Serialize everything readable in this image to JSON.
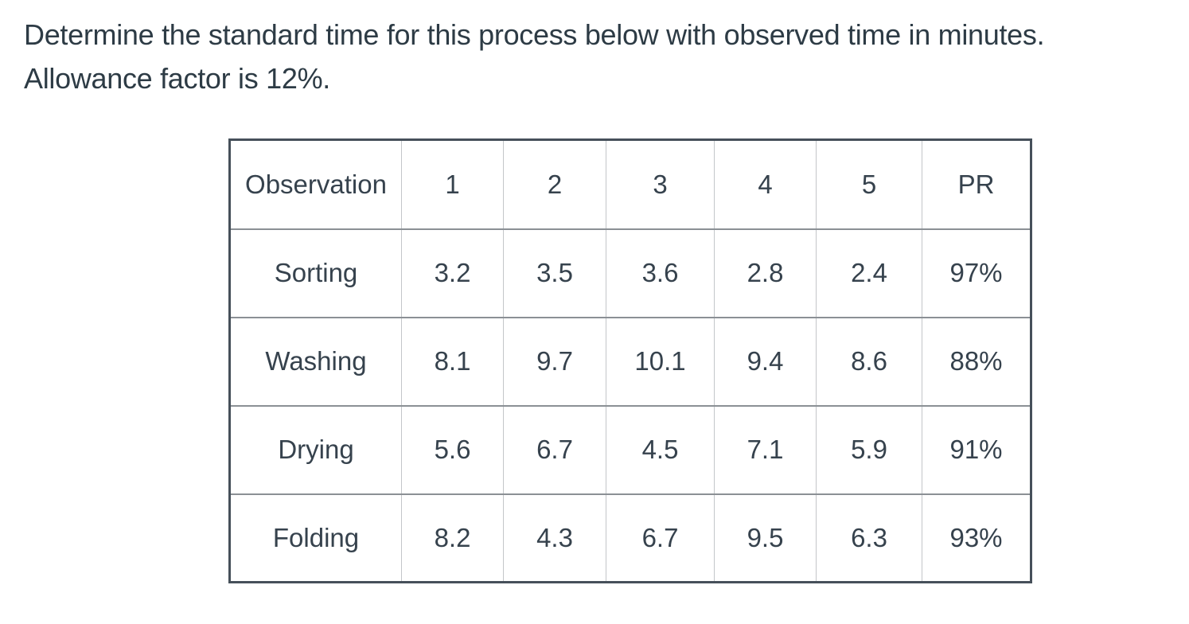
{
  "question": {
    "line1": "Determine the standard time for this process below with observed time in minutes.",
    "line2": "Allowance factor is 12%."
  },
  "table": {
    "header": [
      "Observation",
      "1",
      "2",
      "3",
      "4",
      "5",
      "PR"
    ],
    "rows": [
      {
        "label": "Sorting",
        "values": [
          "3.2",
          "3.5",
          "3.6",
          "2.8",
          "2.4"
        ],
        "pr": "97%"
      },
      {
        "label": "Washing",
        "values": [
          "8.1",
          "9.7",
          "10.1",
          "9.4",
          "8.6"
        ],
        "pr": "88%"
      },
      {
        "label": "Drying",
        "values": [
          "5.6",
          "6.7",
          "4.5",
          "7.1",
          "5.9"
        ],
        "pr": "91%"
      },
      {
        "label": "Folding",
        "values": [
          "8.2",
          "4.3",
          "6.7",
          "9.5",
          "6.3"
        ],
        "pr": "93%"
      }
    ]
  },
  "colors": {
    "question_text": "#2d3b45",
    "table_text": "#36424d",
    "outer_border": "#46505a",
    "row_divider": "#8b9095",
    "column_divider": "#c3c6c9",
    "background": "#ffffff"
  }
}
